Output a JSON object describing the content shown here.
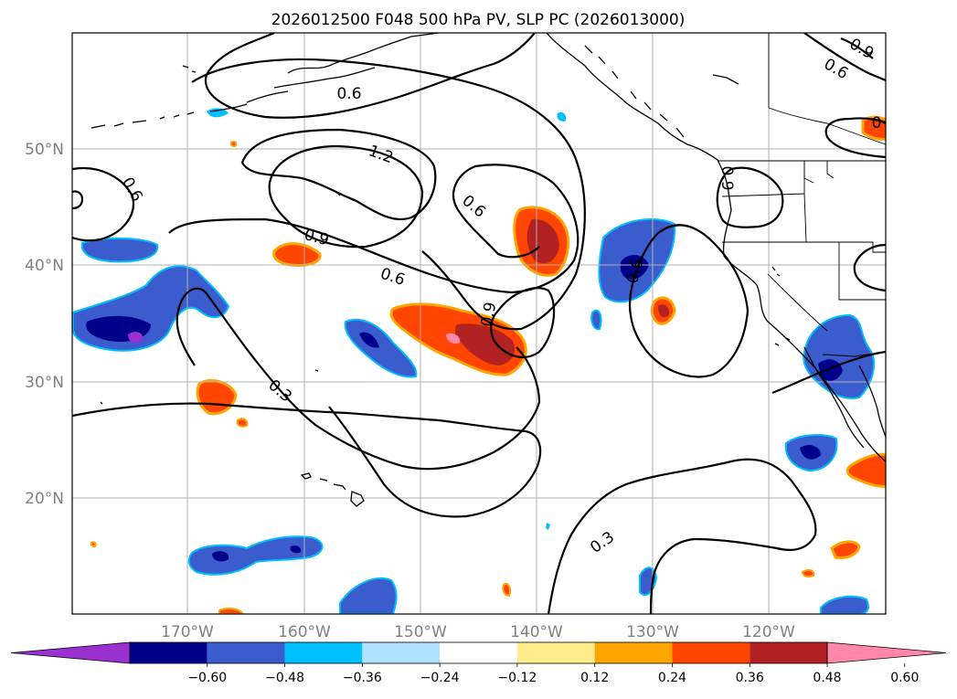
{
  "title": "2026012500 F048 500 hPa PV, SLP PC (2026013000)",
  "latitudes": [
    "50°N",
    "40°N",
    "30°N",
    "20°N"
  ],
  "longitudes": [
    "170°W",
    "160°W",
    "150°W",
    "140°W",
    "130°W",
    "120°W"
  ],
  "contour_labels": [
    "0.6",
    "1.2",
    "0.9",
    "0.6",
    "0.6",
    "0.6",
    "0.9",
    "0.3",
    "0.3",
    "0.6",
    "0.9",
    "0.9",
    "0",
    "0.6"
  ],
  "colorbar": {
    "ticks": [
      "−0.60",
      "−0.48",
      "−0.36",
      "−0.24",
      "−0.12",
      "0.12",
      "0.24",
      "0.36",
      "0.48",
      "0.60"
    ],
    "bins": [
      "#9b30d0",
      "#00008b",
      "#3a5ccc",
      "#00bfff",
      "#b0e2ff",
      "#ffffff",
      "#ffec8b",
      "#ffa500",
      "#ff4500",
      "#b22222",
      "#ff88aa"
    ]
  },
  "colors": {
    "neg_strong": "#00008b",
    "neg_mid": "#3a5ccc",
    "neg_light": "#00bfff",
    "pos_light": "#ffec8b",
    "pos_mid": "#ffa500",
    "pos_strong": "#ff4500",
    "pos_max": "#b22222",
    "pos_extreme": "#ff88aa",
    "neg_extreme": "#9b30d0"
  }
}
